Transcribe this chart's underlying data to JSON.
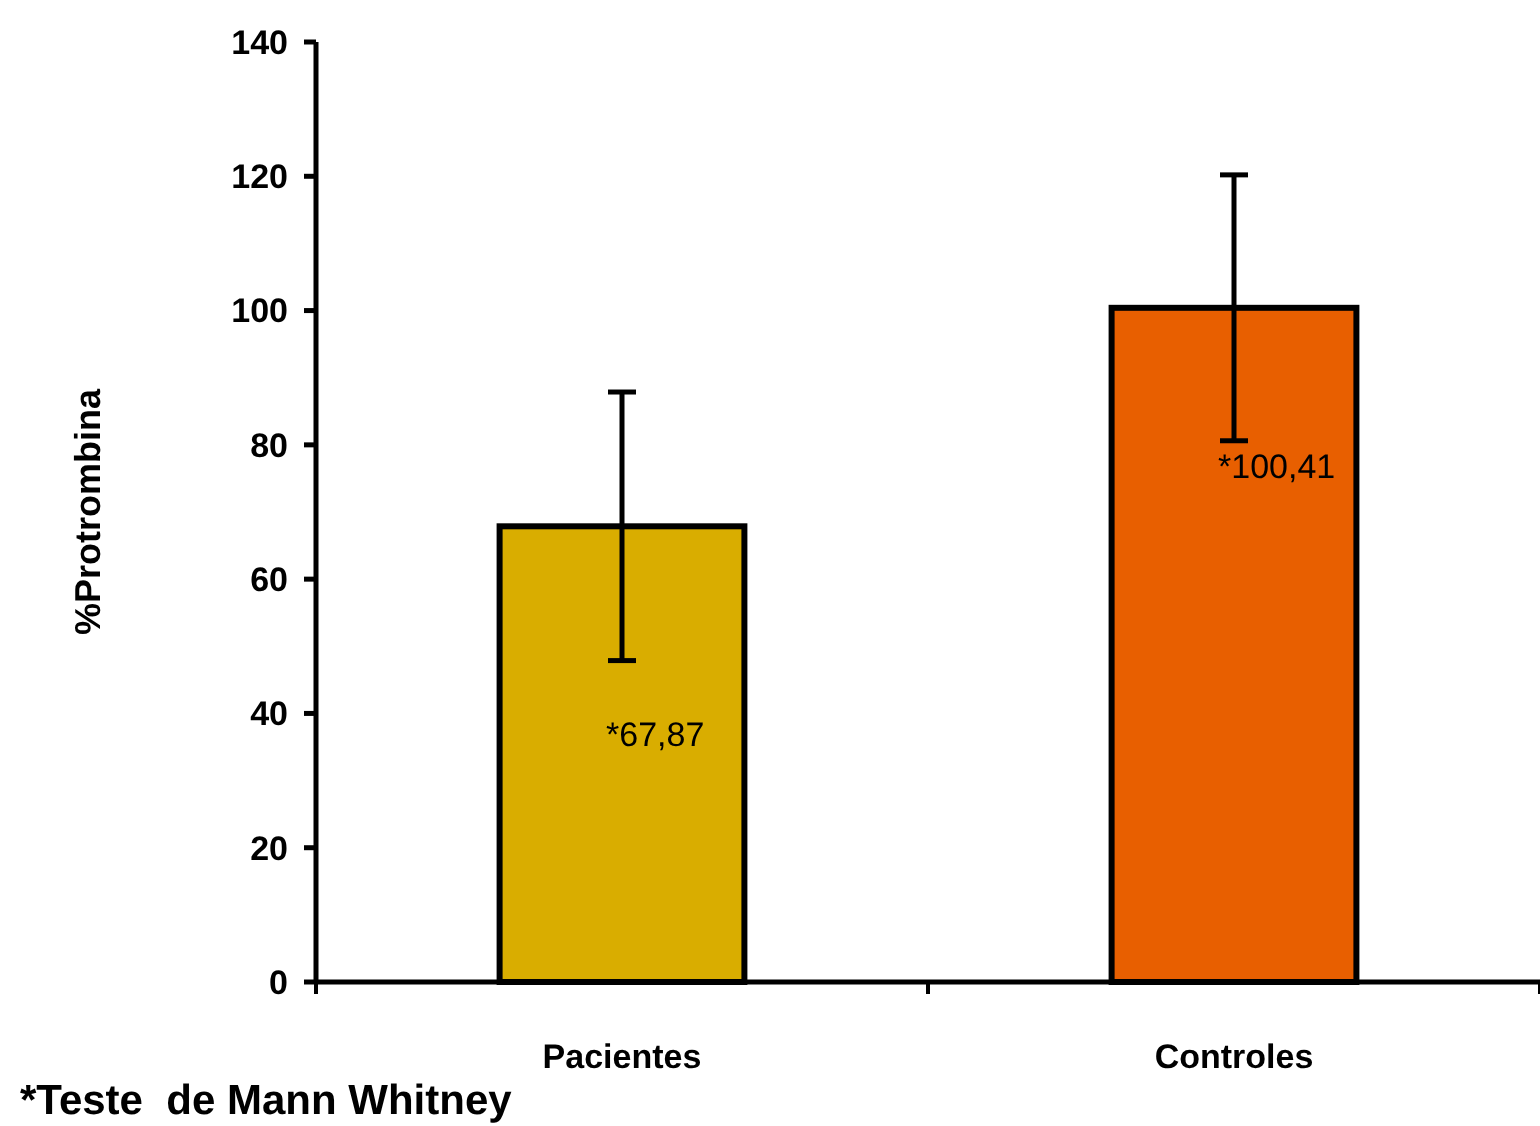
{
  "chart_data": {
    "type": "bar",
    "ylabel": "%Protrombina",
    "categories": [
      "Pacientes",
      "Controles"
    ],
    "values": [
      67.87,
      100.41
    ],
    "colors": [
      "#d9ad00",
      "#e85f00"
    ],
    "errors": [
      20,
      19.8
    ],
    "value_labels": [
      "*67,87",
      "*100,41"
    ],
    "ylim": [
      0,
      140
    ],
    "yticks": [
      0,
      20,
      40,
      60,
      80,
      100,
      120,
      140
    ],
    "grid": false,
    "annotations": [
      "*Teste  de Mann Whitney"
    ]
  }
}
